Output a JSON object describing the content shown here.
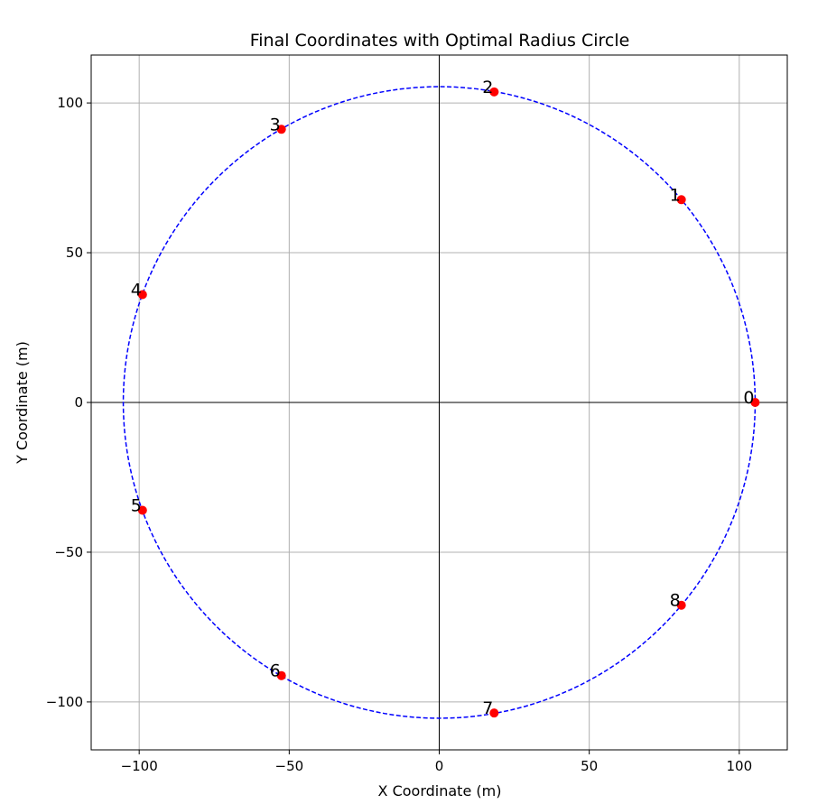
{
  "chart_data": {
    "type": "scatter",
    "title": "Final Coordinates with Optimal Radius Circle",
    "xlabel": "X Coordinate (m)",
    "ylabel": "Y Coordinate (m)",
    "xlim": [
      -116,
      116
    ],
    "ylim": [
      -116,
      116
    ],
    "xticks": [
      -100,
      -50,
      0,
      50,
      100
    ],
    "yticks": [
      -100,
      -50,
      0,
      50,
      100
    ],
    "xtick_labels": [
      "−100",
      "−50",
      "0",
      "50",
      "100"
    ],
    "ytick_labels": [
      "−100",
      "−50",
      "0",
      "50",
      "100"
    ],
    "grid": true,
    "circle": {
      "center": [
        0,
        0
      ],
      "radius": 105.3,
      "color": "#0000ff",
      "style": "dashed"
    },
    "points": [
      {
        "label": "0",
        "x": 105.3,
        "y": 0.0
      },
      {
        "label": "1",
        "x": 80.7,
        "y": 67.7
      },
      {
        "label": "2",
        "x": 18.3,
        "y": 103.7
      },
      {
        "label": "3",
        "x": -52.6,
        "y": 91.2
      },
      {
        "label": "4",
        "x": -98.9,
        "y": 36.0
      },
      {
        "label": "5",
        "x": -98.9,
        "y": -36.0
      },
      {
        "label": "6",
        "x": -52.6,
        "y": -91.2
      },
      {
        "label": "7",
        "x": 18.3,
        "y": -103.7
      },
      {
        "label": "8",
        "x": 80.7,
        "y": -67.7
      }
    ],
    "point_color": "#ff0000"
  }
}
